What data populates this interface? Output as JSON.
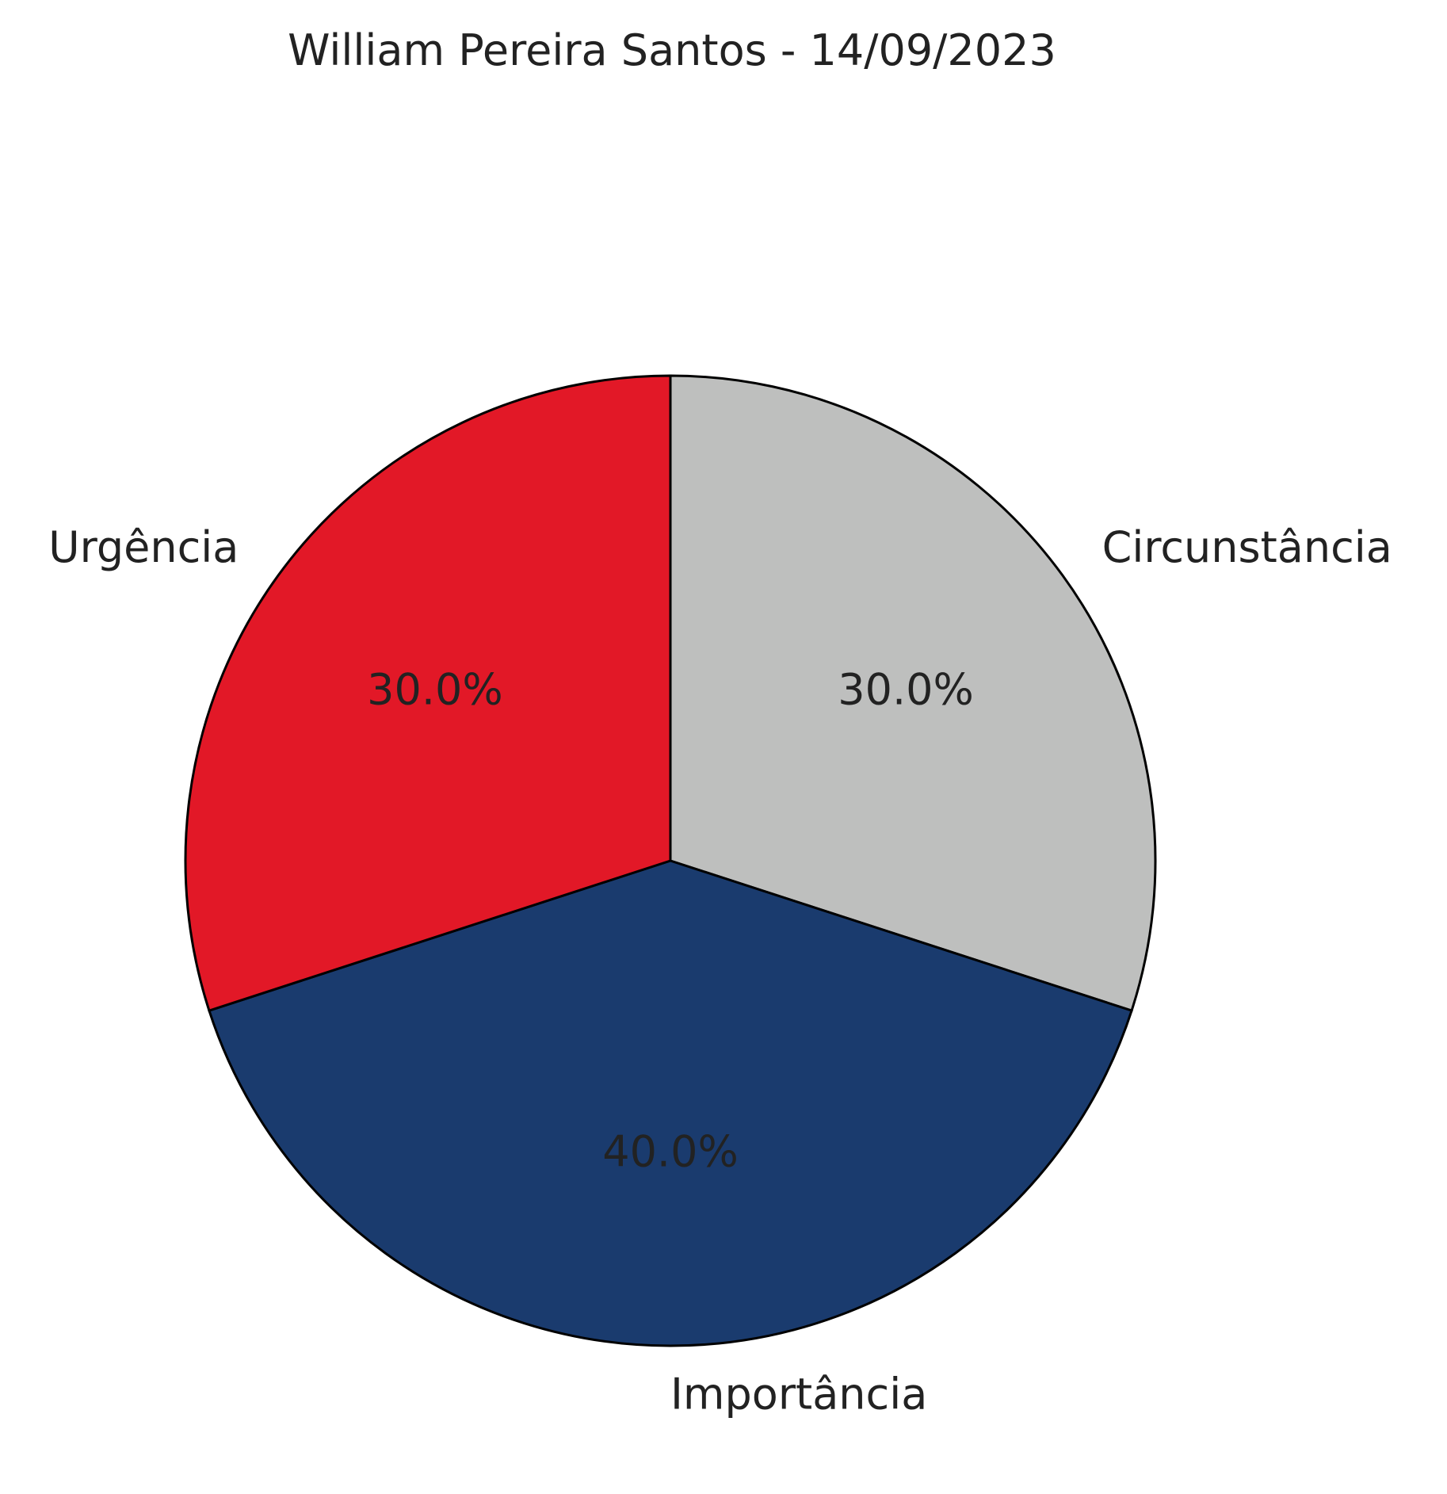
{
  "chart_data": {
    "type": "pie",
    "title": "William Pereira Santos - 14/09/2023",
    "slices": [
      {
        "label": "Circunstância",
        "value": 30.0,
        "pct_label": "30.0%",
        "color": "#bebfbe"
      },
      {
        "label": "Importância",
        "value": 40.0,
        "pct_label": "40.0%",
        "color": "#1a3b6e"
      },
      {
        "label": "Urgência",
        "value": 30.0,
        "pct_label": "30.0%",
        "color": "#e21827"
      }
    ],
    "direction": "clockwise",
    "start": "top",
    "edge_color": "#000000"
  }
}
